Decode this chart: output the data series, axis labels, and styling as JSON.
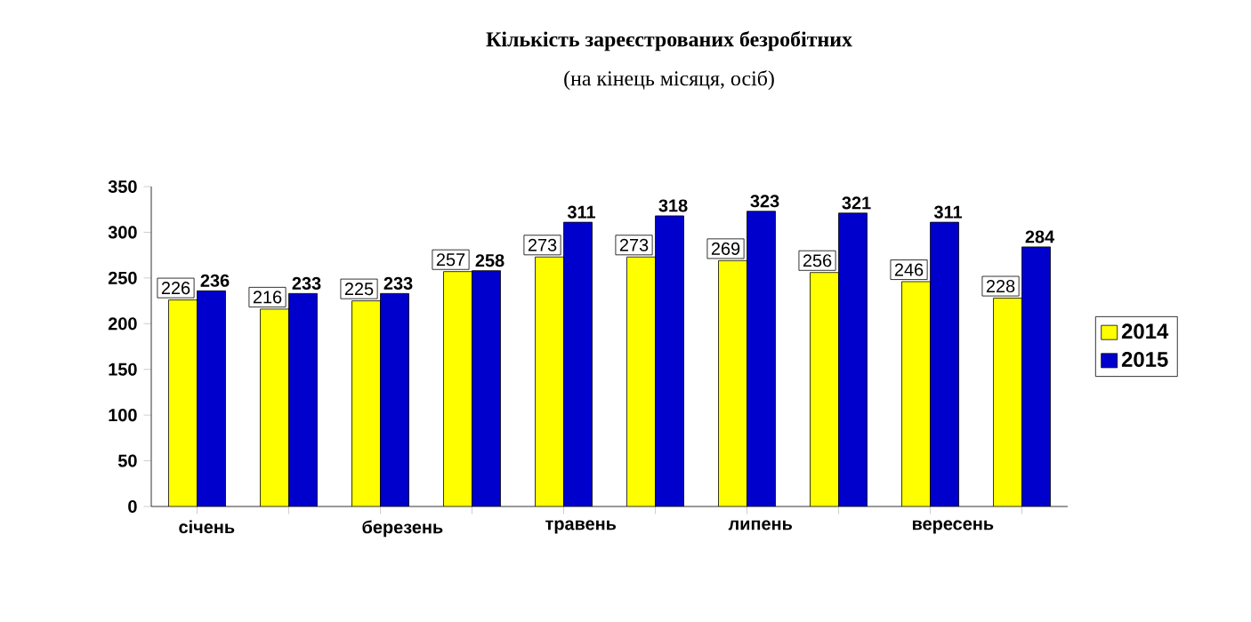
{
  "chart_data": {
    "type": "bar",
    "title": "Кількість зареєстрованих безробітних",
    "subtitle": "(на кінець місяця, осіб)",
    "categories": [
      "січень",
      null,
      "березень",
      null,
      "травень",
      null,
      "липень",
      null,
      "вересень",
      null
    ],
    "series": [
      {
        "name": "2014",
        "color": "#ffff00",
        "values": [
          226,
          216,
          225,
          257,
          273,
          273,
          269,
          256,
          246,
          228
        ]
      },
      {
        "name": "2015",
        "color": "#0000cc",
        "values": [
          236,
          233,
          233,
          258,
          311,
          318,
          323,
          321,
          311,
          284
        ]
      }
    ],
    "ylim": [
      0,
      350
    ],
    "yticks": [
      0,
      50,
      100,
      150,
      200,
      250,
      300,
      350
    ],
    "data_labels": true,
    "legend": "right"
  }
}
